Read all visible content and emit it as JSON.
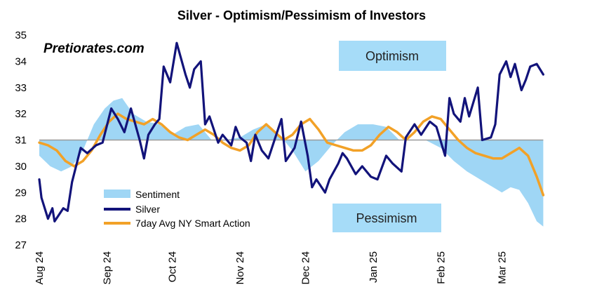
{
  "chart_data": {
    "type": "line",
    "title": "Silver - Optimism/Pessimism of Investors",
    "watermark": "Pretiorates.com",
    "ylim": [
      27,
      35
    ],
    "yticks": [
      "27",
      "28",
      "29",
      "30",
      "31",
      "32",
      "33",
      "34",
      "35"
    ],
    "xlim": [
      "2024-08-01",
      "2025-03-25"
    ],
    "xticks": [
      {
        "date": "2024-08-01",
        "label": "Aug 24"
      },
      {
        "date": "2024-09-01",
        "label": "Sep 24"
      },
      {
        "date": "2024-10-01",
        "label": "Oct 24"
      },
      {
        "date": "2024-11-01",
        "label": "Nov 24"
      },
      {
        "date": "2024-12-01",
        "label": "Dec 24"
      },
      {
        "date": "2025-01-01",
        "label": "Jan 25"
      },
      {
        "date": "2025-02-01",
        "label": "Feb 25"
      },
      {
        "date": "2025-03-01",
        "label": "Mar 25"
      }
    ],
    "baseline": 31,
    "zone_labels": {
      "optimism": "Optimism",
      "pessimism": "Pessimism"
    },
    "colors": {
      "sentiment": "#9fd6f5",
      "silver": "#12137a",
      "smart_action": "#f2a127",
      "label_box": "#a6dcf8"
    },
    "legend": [
      "Sentiment",
      "Silver",
      "7day Avg NY Smart Action"
    ],
    "grid": false,
    "series": [
      {
        "name": "Sentiment",
        "type": "area",
        "x": [
          "2024-08-01",
          "2024-08-06",
          "2024-08-11",
          "2024-08-16",
          "2024-08-21",
          "2024-08-26",
          "2024-08-31",
          "2024-09-04",
          "2024-09-08",
          "2024-09-13",
          "2024-09-19",
          "2024-09-25",
          "2024-10-01",
          "2024-10-07",
          "2024-10-13",
          "2024-10-19",
          "2024-10-25",
          "2024-11-01",
          "2024-11-07",
          "2024-11-13",
          "2024-11-19",
          "2024-11-25",
          "2024-12-01",
          "2024-12-07",
          "2024-12-13",
          "2024-12-19",
          "2024-12-25",
          "2025-01-01",
          "2025-01-07",
          "2025-01-13",
          "2025-01-19",
          "2025-01-25",
          "2025-02-01",
          "2025-02-07",
          "2025-02-13",
          "2025-02-19",
          "2025-02-25",
          "2025-03-01",
          "2025-03-05",
          "2025-03-09",
          "2025-03-13",
          "2025-03-17",
          "2025-03-20"
        ],
        "values": [
          30.4,
          30.0,
          29.8,
          30.0,
          30.6,
          31.6,
          32.2,
          32.5,
          32.6,
          32.0,
          31.7,
          31.6,
          31.2,
          31.5,
          31.6,
          31.0,
          31.0,
          31.1,
          31.4,
          31.6,
          31.2,
          30.6,
          29.8,
          30.2,
          30.8,
          31.3,
          31.6,
          31.6,
          31.5,
          31.0,
          31.0,
          31.0,
          30.7,
          30.2,
          29.8,
          29.5,
          29.2,
          29.0,
          29.2,
          29.1,
          28.6,
          27.9,
          27.7
        ]
      },
      {
        "name": "Silver",
        "type": "line",
        "x": [
          "2024-08-01",
          "2024-08-02",
          "2024-08-05",
          "2024-08-07",
          "2024-08-08",
          "2024-08-12",
          "2024-08-14",
          "2024-08-16",
          "2024-08-20",
          "2024-08-23",
          "2024-08-27",
          "2024-08-30",
          "2024-09-03",
          "2024-09-06",
          "2024-09-09",
          "2024-09-12",
          "2024-09-16",
          "2024-09-18",
          "2024-09-20",
          "2024-09-23",
          "2024-09-25",
          "2024-09-27",
          "2024-09-30",
          "2024-10-03",
          "2024-10-07",
          "2024-10-09",
          "2024-10-11",
          "2024-10-14",
          "2024-10-16",
          "2024-10-18",
          "2024-10-22",
          "2024-10-24",
          "2024-10-28",
          "2024-10-30",
          "2024-11-01",
          "2024-11-04",
          "2024-11-06",
          "2024-11-08",
          "2024-11-11",
          "2024-11-14",
          "2024-11-18",
          "2024-11-20",
          "2024-11-22",
          "2024-11-26",
          "2024-11-29",
          "2024-12-02",
          "2024-12-04",
          "2024-12-06",
          "2024-12-10",
          "2024-12-12",
          "2024-12-16",
          "2024-12-18",
          "2024-12-20",
          "2024-12-24",
          "2024-12-27",
          "2024-12-31",
          "2025-01-03",
          "2025-01-07",
          "2025-01-10",
          "2025-01-14",
          "2025-01-16",
          "2025-01-20",
          "2025-01-23",
          "2025-01-27",
          "2025-01-30",
          "2025-02-03",
          "2025-02-05",
          "2025-02-07",
          "2025-02-10",
          "2025-02-12",
          "2025-02-14",
          "2025-02-18",
          "2025-02-20",
          "2025-02-24",
          "2025-02-26",
          "2025-02-28",
          "2025-03-03",
          "2025-03-04",
          "2025-03-05",
          "2025-03-07",
          "2025-03-10",
          "2025-03-12",
          "2025-03-14",
          "2025-03-17",
          "2025-03-20"
        ],
        "values": [
          29.5,
          28.8,
          28.0,
          28.4,
          27.9,
          28.4,
          28.3,
          29.4,
          30.7,
          30.5,
          30.8,
          30.9,
          32.2,
          31.8,
          31.3,
          32.2,
          31.0,
          30.3,
          31.2,
          31.6,
          31.8,
          33.8,
          33.2,
          34.7,
          33.5,
          33.0,
          33.7,
          34.0,
          31.6,
          31.9,
          30.9,
          31.2,
          30.8,
          31.5,
          31.1,
          30.9,
          30.2,
          31.2,
          30.6,
          30.3,
          31.3,
          31.8,
          30.2,
          30.7,
          31.7,
          30.4,
          29.2,
          29.5,
          29.0,
          29.5,
          30.1,
          30.5,
          30.3,
          29.7,
          30.0,
          29.6,
          29.5,
          30.4,
          30.1,
          29.8,
          31.1,
          31.6,
          31.2,
          31.7,
          31.5,
          30.4,
          32.6,
          32.0,
          31.7,
          32.6,
          31.9,
          33.0,
          31.0,
          31.1,
          31.6,
          33.5,
          34.0,
          33.7,
          33.4,
          33.9,
          32.9,
          33.3,
          33.8,
          33.9,
          33.5
        ]
      },
      {
        "name": "7day Avg NY Smart Action",
        "type": "line",
        "x": [
          "2024-08-01",
          "2024-08-05",
          "2024-08-09",
          "2024-08-13",
          "2024-08-17",
          "2024-08-21",
          "2024-08-25",
          "2024-08-29",
          "2024-09-02",
          "2024-09-06",
          "2024-09-10",
          "2024-09-14",
          "2024-09-18",
          "2024-09-22",
          "2024-09-26",
          "2024-09-30",
          "2024-10-04",
          "2024-10-08",
          "2024-10-12",
          "2024-10-16",
          "2024-10-20",
          "2024-10-24",
          "2024-10-28",
          "2024-11-01",
          "2024-11-05",
          "2024-11-09",
          "2024-11-13",
          "2024-11-17",
          "2024-11-21",
          "2024-11-25",
          "2024-11-29",
          "2024-12-03",
          "2024-12-07",
          "2024-12-11",
          "2024-12-15",
          "2024-12-19",
          "2024-12-23",
          "2024-12-27",
          "2024-12-31",
          "2025-01-04",
          "2025-01-08",
          "2025-01-12",
          "2025-01-16",
          "2025-01-20",
          "2025-01-24",
          "2025-01-28",
          "2025-02-01",
          "2025-02-05",
          "2025-02-09",
          "2025-02-13",
          "2025-02-17",
          "2025-02-21",
          "2025-02-25",
          "2025-03-01",
          "2025-03-05",
          "2025-03-09",
          "2025-03-13",
          "2025-03-17",
          "2025-03-20"
        ],
        "values": [
          30.9,
          30.8,
          30.6,
          30.2,
          30.0,
          30.2,
          30.6,
          31.2,
          31.7,
          32.0,
          31.8,
          31.7,
          31.6,
          31.8,
          31.6,
          31.3,
          31.1,
          31.0,
          31.2,
          31.4,
          31.2,
          30.9,
          30.7,
          30.6,
          30.8,
          31.3,
          31.6,
          31.3,
          31.0,
          31.2,
          31.6,
          31.8,
          31.4,
          30.9,
          30.8,
          30.7,
          30.6,
          30.6,
          30.8,
          31.2,
          31.5,
          31.3,
          31.0,
          31.3,
          31.7,
          31.9,
          31.8,
          31.4,
          31.0,
          30.7,
          30.5,
          30.4,
          30.3,
          30.3,
          30.5,
          30.7,
          30.4,
          29.6,
          28.9
        ]
      }
    ]
  }
}
